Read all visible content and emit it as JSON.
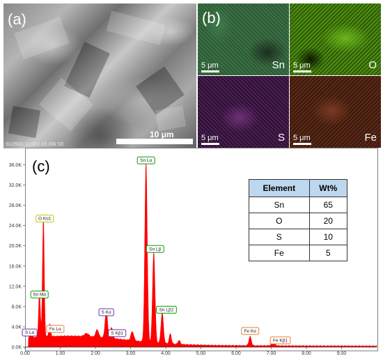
{
  "panels": {
    "a": {
      "letter": "(a)",
      "scale_label": "10 μm",
      "info": "SU3500 10.0kV X5.00k SE"
    },
    "b": {
      "letter": "(b)",
      "maps": [
        {
          "element": "Sn",
          "scale": "5 μm"
        },
        {
          "element": "O",
          "scale": "5 μm"
        },
        {
          "element": "S",
          "scale": "5 μm"
        },
        {
          "element": "Fe",
          "scale": "5 μm"
        }
      ]
    },
    "c": {
      "letter": "(c)"
    }
  },
  "chart_data": {
    "type": "line",
    "title": "",
    "xlabel": "",
    "ylabel": "",
    "xlim": [
      0,
      10
    ],
    "ylim": [
      0,
      38000
    ],
    "x_ticks": [
      "0.00",
      "1.00",
      "2.00",
      "3.00",
      "4.00",
      "5.00",
      "6.00",
      "7.00",
      "8.00",
      "9.00"
    ],
    "y_ticks": [
      "0.0K",
      "4.0K",
      "8.0K",
      "12.0K",
      "16.0K",
      "20.0K",
      "24.0K",
      "28.0K",
      "32.0K",
      "36.0K"
    ],
    "fill_color": "#ff0000",
    "peaks": [
      {
        "label": "S Lα",
        "x": 0.17,
        "y": 1500,
        "color": "#7030a0"
      },
      {
        "label": "Sn Mα",
        "x": 0.41,
        "y": 9000,
        "color": "#00a000"
      },
      {
        "label": "O Kα1",
        "x": 0.52,
        "y": 24000,
        "color": "#b5d000"
      },
      {
        "label": "Fe Lα",
        "x": 0.7,
        "y": 2500,
        "color": "#ed7d31"
      },
      {
        "label": "S Kα",
        "x": 2.31,
        "y": 5500,
        "color": "#7030a0"
      },
      {
        "label": "S Kβ1",
        "x": 2.46,
        "y": 2200,
        "color": "#7030a0"
      },
      {
        "label": "Sn Lα",
        "x": 3.44,
        "y": 35500,
        "color": "#00a000"
      },
      {
        "label": "Sn Lβ",
        "x": 3.66,
        "y": 18000,
        "color": "#00a000"
      },
      {
        "label": "Sn Lβ2",
        "x": 3.9,
        "y": 6000,
        "color": "#00a000"
      },
      {
        "label": "Fe Kα",
        "x": 6.4,
        "y": 1800,
        "color": "#ed7d31"
      },
      {
        "label": "Fe Kβ1",
        "x": 7.06,
        "y": 500,
        "color": "#ed7d31"
      }
    ],
    "table": {
      "headers": [
        "Element",
        "Wt%"
      ],
      "rows": [
        [
          "Sn",
          "65"
        ],
        [
          "O",
          "20"
        ],
        [
          "S",
          "10"
        ],
        [
          "Fe",
          "5"
        ]
      ]
    }
  }
}
